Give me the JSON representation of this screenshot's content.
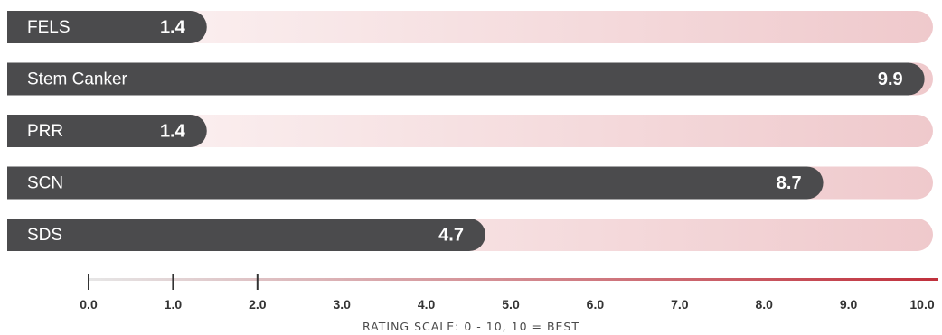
{
  "chart_data": {
    "type": "bar",
    "orientation": "horizontal",
    "categories": [
      "FELS",
      "Stem Canker",
      "PRR",
      "SCN",
      "SDS"
    ],
    "values": [
      1.4,
      9.9,
      1.4,
      8.7,
      4.7
    ],
    "value_labels": [
      "1.4",
      "9.9",
      "1.4",
      "8.7",
      "4.7"
    ],
    "xlim": [
      0,
      10
    ],
    "x_ticks": [
      "0.0",
      "1.0",
      "2.0",
      "3.0",
      "4.0",
      "5.0",
      "6.0",
      "7.0",
      "8.0",
      "9.0",
      "10.0"
    ],
    "xlabel": "RATING SCALE: 0 - 10, 10 = BEST",
    "title": "",
    "ylabel": "",
    "grid": false,
    "legend": "none"
  },
  "colors": {
    "bar": "#4b4b4d",
    "track_start": "#fdf7f7",
    "track_end": "#efc9cc",
    "axis_start": "#e6e6e6",
    "axis_end": "#c0303c",
    "tick": "#333333"
  }
}
